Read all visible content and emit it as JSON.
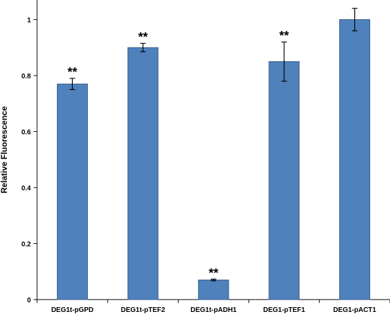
{
  "chart_data": {
    "type": "bar",
    "title": "",
    "xlabel": "",
    "ylabel": "Relative Fluorescence",
    "categories": [
      "DEG1t-pGPD",
      "DEG1t-pTEF2",
      "DEG1t-pADH1",
      "DEG1-pTEF1",
      "DEG1-pACT1"
    ],
    "values": [
      0.77,
      0.9,
      0.07,
      0.85,
      1.0
    ],
    "errors": [
      0.02,
      0.015,
      0.003,
      0.07,
      0.04
    ],
    "annotations": [
      "**",
      "**",
      "**",
      "**",
      ""
    ],
    "ylim": [
      0,
      1.07
    ],
    "yticks": [
      0,
      0.2,
      0.4,
      0.6,
      0.8,
      1
    ],
    "ytick_labels": [
      "0",
      "0.2",
      "0.4",
      "0.6",
      "0.8",
      "1"
    ],
    "grid": false,
    "legend": "none",
    "bar_color": "#4f81bd",
    "bar_edge_color": "#385d8a"
  }
}
